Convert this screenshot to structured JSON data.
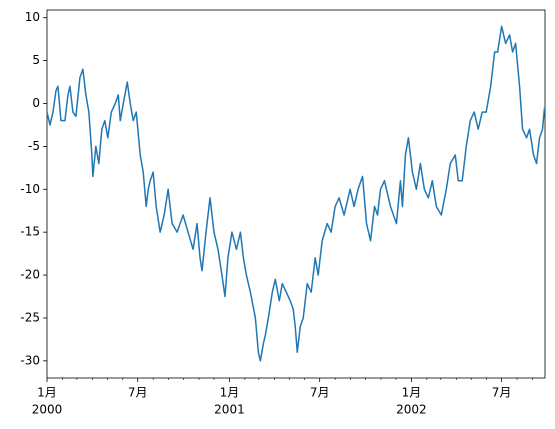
{
  "chart_data": {
    "type": "line",
    "x": [
      "2000-01-01",
      "2000-01-07",
      "2000-01-13",
      "2000-01-19",
      "2000-01-23",
      "2000-01-29",
      "2000-02-06",
      "2000-02-12",
      "2000-02-16",
      "2000-02-22",
      "2000-02-28",
      "2000-03-07",
      "2000-03-13",
      "2000-03-19",
      "2000-03-25",
      "2000-03-31",
      "2000-04-02",
      "2000-04-08",
      "2000-04-14",
      "2000-04-20",
      "2000-04-26",
      "2000-05-02",
      "2000-05-09",
      "2000-05-17",
      "2000-05-23",
      "2000-05-27",
      "2000-06-02",
      "2000-06-10",
      "2000-06-16",
      "2000-06-22",
      "2000-06-28",
      "2000-07-06",
      "2000-07-12",
      "2000-07-18",
      "2000-07-22",
      "2000-07-26",
      "2000-08-01",
      "2000-08-07",
      "2000-08-15",
      "2000-08-23",
      "2000-08-31",
      "2000-09-08",
      "2000-09-18",
      "2000-09-30",
      "2000-10-10",
      "2000-10-20",
      "2000-10-28",
      "2000-11-03",
      "2000-11-07",
      "2000-11-15",
      "2000-11-23",
      "2000-12-01",
      "2000-12-09",
      "2000-12-17",
      "2000-12-23",
      "2000-12-29",
      "2001-01-06",
      "2001-01-15",
      "2001-01-23",
      "2001-01-29",
      "2001-02-04",
      "2001-02-12",
      "2001-02-22",
      "2001-02-28",
      "2001-03-04",
      "2001-03-10",
      "2001-03-14",
      "2001-03-20",
      "2001-03-28",
      "2001-04-03",
      "2001-04-11",
      "2001-04-17",
      "2001-04-25",
      "2001-05-03",
      "2001-05-09",
      "2001-05-13",
      "2001-05-17",
      "2001-05-23",
      "2001-05-29",
      "2001-06-06",
      "2001-06-14",
      "2001-06-22",
      "2001-06-28",
      "2001-07-06",
      "2001-07-16",
      "2001-07-24",
      "2001-08-01",
      "2001-08-09",
      "2001-08-19",
      "2001-08-31",
      "2001-09-08",
      "2001-09-16",
      "2001-09-25",
      "2001-10-03",
      "2001-10-11",
      "2001-10-19",
      "2001-10-25",
      "2001-10-31",
      "2001-11-08",
      "2001-11-20",
      "2001-12-02",
      "2001-12-10",
      "2001-12-14",
      "2001-12-20",
      "2001-12-26",
      "2002-01-03",
      "2002-01-11",
      "2002-01-19",
      "2002-01-27",
      "2002-02-04",
      "2002-02-12",
      "2002-02-20",
      "2002-03-02",
      "2002-03-12",
      "2002-03-20",
      "2002-03-30",
      "2002-04-05",
      "2002-04-13",
      "2002-04-21",
      "2002-04-29",
      "2002-05-07",
      "2002-05-15",
      "2002-05-23",
      "2002-05-31",
      "2002-06-09",
      "2002-06-17",
      "2002-06-23",
      "2002-07-01",
      "2002-07-09",
      "2002-07-17",
      "2002-07-23",
      "2002-07-29",
      "2002-08-06",
      "2002-08-12",
      "2002-08-20",
      "2002-08-26",
      "2002-09-03",
      "2002-09-09",
      "2002-09-15",
      "2002-09-21",
      "2002-09-25"
    ],
    "series": [
      {
        "color": "#1f77b4",
        "values": [
          -1,
          -2.5,
          -1,
          1.5,
          2,
          -2,
          -2,
          1,
          2,
          -1,
          -1.5,
          3,
          4,
          1,
          -1,
          -6,
          -8.5,
          -5,
          -7,
          -3,
          -2,
          -4,
          -1,
          0,
          1,
          -2,
          0,
          2.5,
          0,
          -2,
          -1,
          -6,
          -8,
          -12,
          -10,
          -9,
          -8,
          -12,
          -15,
          -13,
          -10,
          -14,
          -15,
          -13,
          -15,
          -17,
          -14,
          -18,
          -19.5,
          -15,
          -11,
          -15,
          -17,
          -20,
          -22.5,
          -18,
          -15,
          -17,
          -15,
          -18,
          -20,
          -22,
          -25,
          -29,
          -30,
          -28,
          -27,
          -25,
          -22,
          -20.5,
          -23,
          -21,
          -22,
          -23,
          -24,
          -26,
          -29,
          -26,
          -25,
          -21,
          -22,
          -18,
          -20,
          -16,
          -14,
          -15,
          -12,
          -11,
          -13,
          -10,
          -12,
          -10,
          -8.5,
          -14,
          -16,
          -12,
          -13,
          -10,
          -9,
          -12,
          -14,
          -9,
          -12,
          -6,
          -4,
          -8,
          -10,
          -7,
          -10,
          -11,
          -9,
          -12,
          -13,
          -10,
          -7,
          -6,
          -9,
          -9,
          -5,
          -2,
          -1,
          -3,
          -1,
          -1,
          2,
          6,
          6,
          9,
          7,
          8,
          6,
          7,
          2,
          -3,
          -4,
          -3,
          -6,
          -7,
          -4,
          -3,
          -0.5
        ]
      }
    ],
    "xlim": [
      "2000-01-01",
      "2002-09-26"
    ],
    "xticks": [
      {
        "value": "2000-01-01",
        "label": "1月",
        "year": "2000"
      },
      {
        "value": "2000-07-01",
        "label": "7月"
      },
      {
        "value": "2001-01-01",
        "label": "1月",
        "year": "2001"
      },
      {
        "value": "2001-07-01",
        "label": "7月"
      },
      {
        "value": "2002-01-01",
        "label": "1月",
        "year": "2002"
      },
      {
        "value": "2002-07-01",
        "label": "7月"
      }
    ],
    "xminorticks": [
      "2000-02-01",
      "2000-03-01",
      "2000-04-01",
      "2000-05-01",
      "2000-06-01",
      "2000-08-01",
      "2000-09-01",
      "2000-10-01",
      "2000-11-01",
      "2000-12-01",
      "2001-02-01",
      "2001-03-01",
      "2001-04-01",
      "2001-05-01",
      "2001-06-01",
      "2001-08-01",
      "2001-09-01",
      "2001-10-01",
      "2001-11-01",
      "2001-12-01",
      "2002-02-01",
      "2002-03-01",
      "2002-04-01",
      "2002-05-01",
      "2002-06-01",
      "2002-08-01",
      "2002-09-01"
    ],
    "ylim": [
      -32.0,
      10.9
    ],
    "yticks": [
      10,
      5,
      0,
      -5,
      -10,
      -15,
      -20,
      -25,
      -30
    ]
  }
}
